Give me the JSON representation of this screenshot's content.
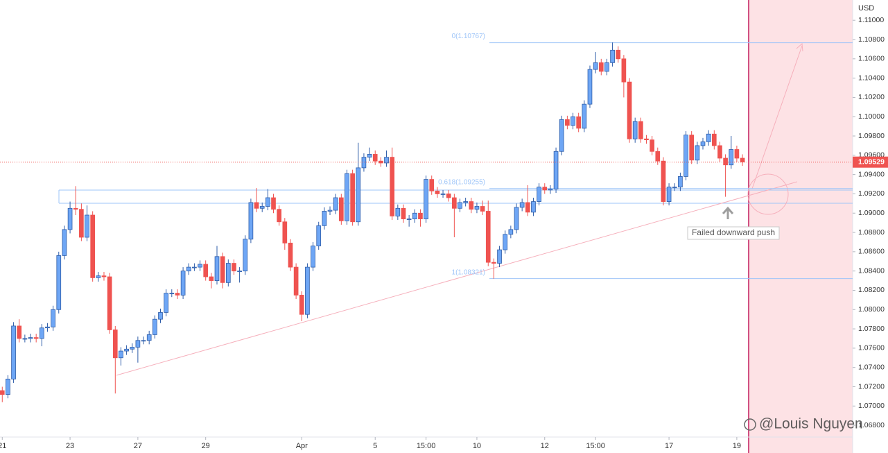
{
  "chart_data": {
    "type": "candlestick",
    "currency": "USD",
    "up_color": "#6ea6f5",
    "up_border": "#2d5ca8",
    "down_color": "#ef5350",
    "grid": false,
    "xlim": [
      -0.4,
      150.5
    ],
    "ylim": [
      1.067,
      1.1121
    ],
    "xticks": [
      {
        "value": 0,
        "label": "21"
      },
      {
        "value": 12,
        "label": "23"
      },
      {
        "value": 24,
        "label": "27"
      },
      {
        "value": 36,
        "label": "29"
      },
      {
        "value": 53,
        "label": "Apr"
      },
      {
        "value": 66,
        "label": "5"
      },
      {
        "value": 75,
        "label": "15:00"
      },
      {
        "value": 84,
        "label": "10"
      },
      {
        "value": 96,
        "label": "12"
      },
      {
        "value": 105,
        "label": "15:00"
      },
      {
        "value": 118,
        "label": "17"
      },
      {
        "value": 130,
        "label": "19"
      }
    ],
    "yticks": [
      {
        "value": 1.11,
        "label": "1.11000"
      },
      {
        "value": 1.108,
        "label": "1.10800"
      },
      {
        "value": 1.106,
        "label": "1.10600"
      },
      {
        "value": 1.104,
        "label": "1.10400"
      },
      {
        "value": 1.102,
        "label": "1.10200"
      },
      {
        "value": 1.1,
        "label": "1.10000"
      },
      {
        "value": 1.098,
        "label": "1.09800"
      },
      {
        "value": 1.096,
        "label": "1.09600"
      },
      {
        "value": 1.094,
        "label": "1.09400"
      },
      {
        "value": 1.092,
        "label": "1.09200"
      },
      {
        "value": 1.09,
        "label": "1.09000"
      },
      {
        "value": 1.088,
        "label": "1.08800"
      },
      {
        "value": 1.086,
        "label": "1.08600"
      },
      {
        "value": 1.084,
        "label": "1.08400"
      },
      {
        "value": 1.082,
        "label": "1.08200"
      },
      {
        "value": 1.08,
        "label": "1.08000"
      },
      {
        "value": 1.078,
        "label": "1.07800"
      },
      {
        "value": 1.076,
        "label": "1.07600"
      },
      {
        "value": 1.074,
        "label": "1.07400"
      },
      {
        "value": 1.072,
        "label": "1.07200"
      },
      {
        "value": 1.07,
        "label": "1.07000"
      },
      {
        "value": 1.068,
        "label": "1.06800"
      }
    ],
    "last_price": {
      "value": 1.09529,
      "label": "1.09529"
    },
    "fib_levels": [
      {
        "value": 1.10767,
        "label": "0(1.10767)"
      },
      {
        "value": 1.09255,
        "label": "0.618(1.09255)"
      },
      {
        "value": 1.08321,
        "label": "1(1.08321)"
      }
    ],
    "annotation": "Failed downward push",
    "watermark": "@Louis Nguyen",
    "open": [
      1.0716,
      1.0712,
      1.0728,
      1.0783,
      1.077,
      1.077,
      1.0771,
      1.077,
      1.0781,
      1.0782,
      1.08,
      1.0856,
      1.0883,
      1.0905,
      1.0904,
      1.0875,
      1.0898,
      1.0833,
      1.0835,
      1.0834,
      1.0779,
      1.075,
      1.0757,
      1.0759,
      1.0761,
      1.0768,
      1.0768,
      1.0774,
      1.079,
      1.0797,
      1.0817,
      1.0817,
      1.0815,
      1.084,
      1.0844,
      1.0844,
      1.0847,
      1.0834,
      1.083,
      1.0855,
      1.0828,
      1.0848,
      1.084,
      1.084,
      1.0873,
      1.0911,
      1.0905,
      1.0907,
      1.0916,
      1.0904,
      1.0891,
      1.0869,
      1.0844,
      1.0815,
      1.0795,
      1.0844,
      1.0866,
      1.0887,
      1.0902,
      1.0903,
      1.0916,
      1.0892,
      1.0941,
      1.0891,
      1.0947,
      1.0958,
      1.0961,
      1.0954,
      1.0952,
      1.0958,
      1.0897,
      1.0905,
      1.0894,
      1.0894,
      1.09,
      1.0894,
      1.0935,
      1.0923,
      1.092,
      1.092,
      1.0916,
      1.0905,
      1.0911,
      1.0912,
      1.0904,
      1.0907,
      1.0902,
      1.0849,
      1.0848,
      1.0862,
      1.0878,
      1.0883,
      1.0906,
      1.0911,
      1.0901,
      1.0912,
      1.0927,
      1.0924,
      1.0925,
      1.0964,
      1.0997,
      1.0991,
      1.1,
      1.0988,
      1.1013,
      1.1049,
      1.1056,
      1.1047,
      1.1056,
      1.1069,
      1.106,
      1.1036,
      1.0977,
      1.0995,
      1.0977,
      1.0976,
      1.0964,
      1.0954,
      1.0912,
      1.0927,
      1.0927,
      1.0938,
      1.0981,
      1.0955,
      1.097,
      1.0974,
      1.0982,
      1.097,
      1.0957,
      1.095,
      1.0966,
      1.0957
    ],
    "high": [
      1.072,
      1.0732,
      1.0787,
      1.079,
      1.0774,
      1.0775,
      1.0775,
      1.0785,
      1.0786,
      1.0804,
      1.086,
      1.0887,
      1.0912,
      1.0928,
      1.091,
      1.0908,
      1.0902,
      1.0839,
      1.0839,
      1.0838,
      1.0783,
      1.0761,
      1.0763,
      1.0765,
      1.0772,
      1.0772,
      1.0778,
      1.0794,
      1.0801,
      1.0821,
      1.0821,
      1.0821,
      1.0844,
      1.0848,
      1.0848,
      1.0851,
      1.0851,
      1.0838,
      1.0866,
      1.0859,
      1.0852,
      1.0852,
      1.0844,
      1.0877,
      1.0915,
      1.0926,
      1.0911,
      1.0925,
      1.092,
      1.0908,
      1.0895,
      1.0873,
      1.0848,
      1.0819,
      1.0848,
      1.087,
      1.0891,
      1.0906,
      1.0907,
      1.092,
      1.092,
      1.0945,
      1.0945,
      1.0973,
      1.0962,
      1.0968,
      1.0965,
      1.0958,
      1.0965,
      1.0968,
      1.0909,
      1.0909,
      1.0898,
      1.0904,
      1.0904,
      1.0939,
      1.0939,
      1.0927,
      1.0924,
      1.0924,
      1.092,
      1.0915,
      1.0916,
      1.0916,
      1.0911,
      1.0913,
      1.0913,
      1.0853,
      1.0866,
      1.0882,
      1.0887,
      1.091,
      1.0915,
      1.0929,
      1.0916,
      1.0931,
      1.0931,
      1.0929,
      1.0968,
      1.1001,
      1.1001,
      1.1004,
      1.1004,
      1.1017,
      1.1053,
      1.1067,
      1.106,
      1.106,
      1.1077,
      1.1073,
      1.1064,
      1.104,
      1.0999,
      1.0999,
      1.0981,
      1.098,
      1.0968,
      1.0958,
      1.0931,
      1.0931,
      1.0942,
      1.0985,
      1.0985,
      1.0974,
      1.0978,
      1.0986,
      1.0986,
      1.0974,
      1.0961,
      1.098,
      1.097,
      1.0961
    ],
    "low": [
      1.0704,
      1.0708,
      1.0724,
      1.0766,
      1.0766,
      1.0766,
      1.0766,
      1.0762,
      1.0777,
      1.0778,
      1.0796,
      1.0852,
      1.0879,
      1.0898,
      1.0871,
      1.0871,
      1.0829,
      1.0829,
      1.083,
      1.0775,
      1.0713,
      1.0742,
      1.0753,
      1.0755,
      1.0745,
      1.0764,
      1.0764,
      1.077,
      1.0786,
      1.0793,
      1.0813,
      1.0811,
      1.0811,
      1.0836,
      1.084,
      1.084,
      1.083,
      1.0822,
      1.0826,
      1.0822,
      1.0824,
      1.0836,
      1.0828,
      1.0836,
      1.0869,
      1.0901,
      1.0901,
      1.0903,
      1.09,
      1.0887,
      1.0862,
      1.084,
      1.0811,
      1.0788,
      1.0791,
      1.084,
      1.0862,
      1.0883,
      1.0898,
      1.0899,
      1.0888,
      1.0888,
      1.0887,
      1.0887,
      1.0943,
      1.0954,
      1.095,
      1.0948,
      1.0948,
      1.0893,
      1.0893,
      1.089,
      1.0886,
      1.089,
      1.0886,
      1.089,
      1.0919,
      1.0916,
      1.0916,
      1.0912,
      1.0875,
      1.0901,
      1.0907,
      1.09,
      1.09,
      1.0898,
      1.0845,
      1.0832,
      1.0844,
      1.0858,
      1.0874,
      1.0879,
      1.0902,
      1.0897,
      1.0897,
      1.0908,
      1.092,
      1.092,
      1.0921,
      1.096,
      1.0987,
      1.0987,
      1.0984,
      1.0984,
      1.1009,
      1.1045,
      1.1043,
      1.1043,
      1.1052,
      1.1056,
      1.102,
      1.0973,
      1.0973,
      1.0973,
      1.0972,
      1.096,
      1.095,
      1.0908,
      1.0908,
      1.0923,
      1.0923,
      1.0934,
      1.0951,
      1.0951,
      1.0966,
      1.097,
      1.0966,
      1.0953,
      1.0917,
      1.0946,
      1.0953,
      1.0949
    ],
    "close": [
      1.0712,
      1.0728,
      1.0783,
      1.077,
      1.077,
      1.0771,
      1.077,
      1.0781,
      1.0782,
      1.08,
      1.0856,
      1.0883,
      1.0905,
      1.0904,
      1.0875,
      1.0898,
      1.0833,
      1.0835,
      1.0834,
      1.0779,
      1.075,
      1.0757,
      1.0759,
      1.0761,
      1.0768,
      1.0768,
      1.0774,
      1.079,
      1.0797,
      1.0817,
      1.0817,
      1.0815,
      1.084,
      1.0844,
      1.0844,
      1.0847,
      1.0834,
      1.083,
      1.0855,
      1.0828,
      1.0848,
      1.084,
      1.084,
      1.0873,
      1.0911,
      1.0905,
      1.0907,
      1.0916,
      1.0904,
      1.0891,
      1.0869,
      1.0844,
      1.0815,
      1.0795,
      1.0844,
      1.0866,
      1.0887,
      1.0902,
      1.0903,
      1.0916,
      1.0892,
      1.0941,
      1.0891,
      1.0947,
      1.0958,
      1.0961,
      1.0954,
      1.0952,
      1.0958,
      1.0897,
      1.0905,
      1.0894,
      1.0894,
      1.09,
      1.0894,
      1.0935,
      1.0923,
      1.092,
      1.092,
      1.0916,
      1.0905,
      1.0911,
      1.0912,
      1.0904,
      1.0907,
      1.0902,
      1.0849,
      1.0848,
      1.0862,
      1.0878,
      1.0883,
      1.0906,
      1.0911,
      1.0901,
      1.0912,
      1.0927,
      1.0924,
      1.0925,
      1.0964,
      1.0997,
      1.0991,
      1.1,
      1.0988,
      1.1013,
      1.1049,
      1.1056,
      1.1047,
      1.1056,
      1.1069,
      1.106,
      1.1036,
      1.0977,
      1.0995,
      1.0977,
      1.0976,
      1.0964,
      1.0954,
      1.0912,
      1.0927,
      1.0927,
      1.0938,
      1.0981,
      1.0955,
      1.097,
      1.0974,
      1.0982,
      1.097,
      1.0957,
      1.095,
      1.0966,
      1.0957,
      1.0953
    ]
  }
}
